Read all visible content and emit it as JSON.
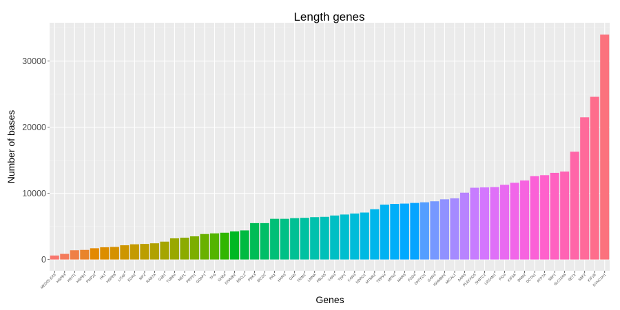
{
  "chart_data": {
    "type": "bar",
    "title": "Length genes",
    "xlabel": "Genes",
    "ylabel": "Number of bases",
    "ylim": [
      -1700,
      35800
    ],
    "yticks": [
      0,
      10000,
      20000,
      30000
    ],
    "grid": true,
    "background": "#EBEBEB",
    "palette": "ggplot2 default hue palette (one color per gene)",
    "categories": [
      "MED25-EX9",
      "HSPB3",
      "HINT1",
      "HSPB1",
      "PMP22",
      "HK1",
      "HSPB8",
      "LITAF",
      "EGR2",
      "MPZ",
      "RAB7A",
      "GJB1",
      "TUBB4",
      "NEFL",
      "PRPS1",
      "GDAP1",
      "TFG",
      "GNB4",
      "DNAJB2",
      "BSCL2",
      "PDK3",
      "BICD2",
      "PRX",
      "HARS",
      "GAN",
      "TRIM2",
      "LMNA",
      "FBLN5",
      "YARS",
      "TDP1",
      "KARS",
      "NDRG1",
      "MTMR2",
      "TRPV4",
      "MFN2",
      "MARS",
      "FGD4",
      "DHTKD1",
      "GARS",
      "IGHMBP2",
      "MICAL1",
      "AARS",
      "PLEKHG5",
      "SH3TC2",
      "LRSAM1",
      "FIG4",
      "KIF5A",
      "DNM2",
      "DCTN1",
      "ATP7A",
      "SBF1",
      "SLC12A6",
      "SETX",
      "SBF2",
      "KIF1B",
      "DYNC1H1"
    ],
    "values": [
      600,
      850,
      1400,
      1450,
      1700,
      1850,
      1900,
      2150,
      2300,
      2350,
      2450,
      2700,
      3200,
      3300,
      3500,
      3850,
      3950,
      4050,
      4250,
      4400,
      5500,
      5500,
      6150,
      6150,
      6250,
      6300,
      6400,
      6450,
      6650,
      6800,
      6950,
      7100,
      7600,
      8300,
      8400,
      8450,
      8550,
      8650,
      8800,
      9100,
      9250,
      10100,
      10850,
      10900,
      10950,
      11300,
      11600,
      11950,
      12600,
      12750,
      13100,
      13300,
      16300,
      21500,
      24600,
      34000
    ]
  }
}
